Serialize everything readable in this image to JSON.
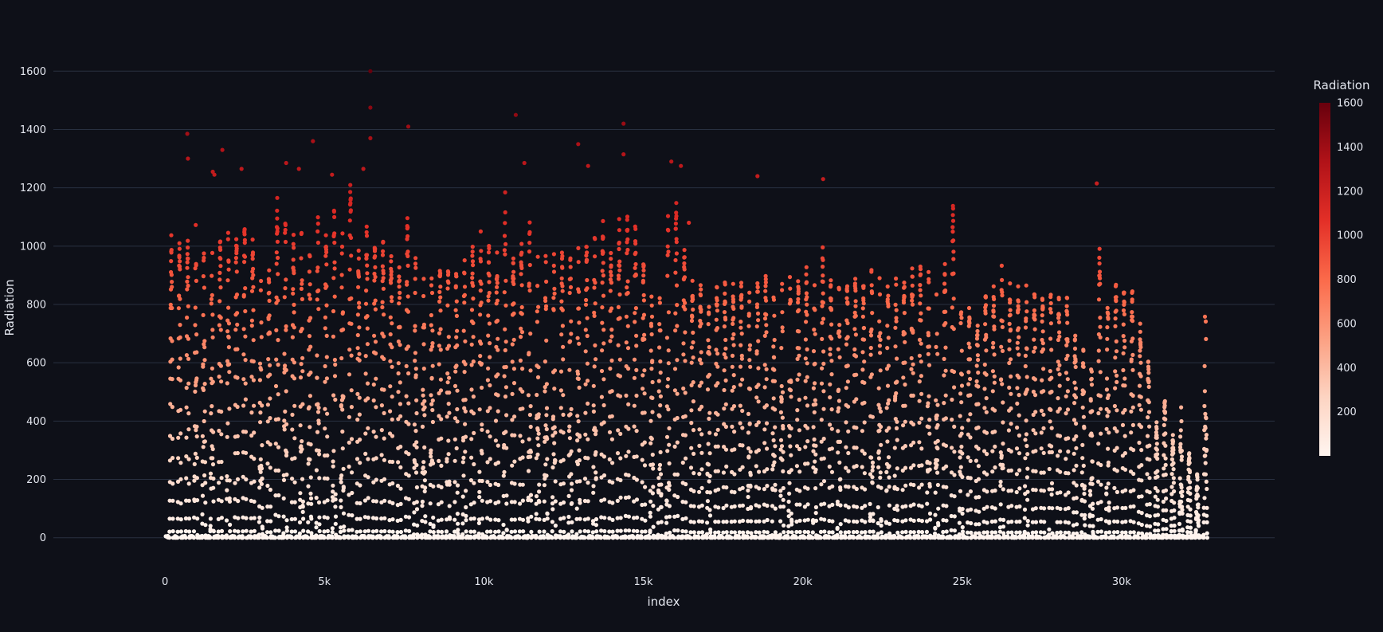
{
  "chart_data": {
    "type": "scatter",
    "xlabel": "index",
    "ylabel": "Radiation",
    "xlim": [
      -3500,
      34800
    ],
    "ylim": [
      -80,
      1680
    ],
    "x_ticks": [
      0,
      5000,
      10000,
      15000,
      20000,
      25000,
      30000
    ],
    "x_tick_labels": [
      "0",
      "5k",
      "10k",
      "15k",
      "20k",
      "25k",
      "30k"
    ],
    "y_ticks": [
      0,
      200,
      400,
      600,
      800,
      1000,
      1200,
      1400,
      1600
    ],
    "y_tick_labels": [
      "0",
      "200",
      "400",
      "600",
      "800",
      "1000",
      "1200",
      "1400",
      "1600"
    ],
    "x_range": [
      0,
      32686
    ],
    "grid": true,
    "colorbar": {
      "title": "Radiation",
      "range": [
        0,
        1600
      ],
      "ticks": [
        200,
        400,
        600,
        800,
        1000,
        1200,
        1400,
        1600
      ],
      "colorscale": [
        "#fff5f0",
        "#fdd4c2",
        "#fca082",
        "#fb6a4a",
        "#e32f27",
        "#b11218",
        "#67000d"
      ]
    },
    "daily_peaks": [
      1040,
      1030,
      1050,
      1075,
      1010,
      1060,
      1050,
      1070,
      1060,
      1090,
      1060,
      900,
      930,
      1180,
      1130,
      1050,
      1080,
      1000,
      1110,
      1060,
      1140,
      1100,
      1260,
      1000,
      1090,
      1070,
      1040,
      1000,
      950,
      1140,
      960,
      900,
      980,
      970,
      980,
      990,
      980,
      1010,
      1060,
      1020,
      980,
      1200,
      1000,
      1020,
      1100,
      1010,
      1000,
      1010,
      1020,
      1030,
      1000,
      1040,
      1060,
      1110,
      1020,
      1100,
      1130,
      1100,
      980,
      890,
      850,
      1130,
      1200,
      1030,
      890,
      880,
      850,
      880,
      890,
      880,
      890,
      870,
      910,
      920,
      880,
      880,
      920,
      910,
      930,
      920,
      1000,
      910,
      900,
      900,
      910,
      890,
      960,
      900,
      900,
      940,
      920,
      940,
      940,
      940,
      940,
      960,
      1180,
      850,
      810,
      760,
      850,
      880,
      940,
      880,
      870,
      870,
      860,
      860,
      860,
      850,
      830,
      700,
      650,
      620,
      1000,
      860,
      880,
      870,
      870,
      740,
      620,
      400,
      490,
      360,
      460,
      300,
      220,
      860
    ],
    "outliers": [
      {
        "x": 700,
        "y": 1385
      },
      {
        "x": 720,
        "y": 1300
      },
      {
        "x": 1800,
        "y": 1330
      },
      {
        "x": 6440,
        "y": 1600
      },
      {
        "x": 6440,
        "y": 1475
      },
      {
        "x": 6440,
        "y": 1370
      },
      {
        "x": 4640,
        "y": 1360
      },
      {
        "x": 7630,
        "y": 1410
      },
      {
        "x": 11000,
        "y": 1450
      },
      {
        "x": 12960,
        "y": 1350
      },
      {
        "x": 14380,
        "y": 1420
      },
      {
        "x": 14380,
        "y": 1315
      },
      {
        "x": 3800,
        "y": 1285
      },
      {
        "x": 4200,
        "y": 1265
      },
      {
        "x": 2400,
        "y": 1265
      },
      {
        "x": 6220,
        "y": 1265
      },
      {
        "x": 11270,
        "y": 1285
      },
      {
        "x": 13270,
        "y": 1275
      },
      {
        "x": 15880,
        "y": 1290
      },
      {
        "x": 16180,
        "y": 1275
      },
      {
        "x": 18580,
        "y": 1240
      },
      {
        "x": 20640,
        "y": 1230
      },
      {
        "x": 29220,
        "y": 1215
      },
      {
        "x": 1500,
        "y": 1255
      },
      {
        "x": 1550,
        "y": 1245
      },
      {
        "x": 5240,
        "y": 1245
      },
      {
        "x": 16430,
        "y": 1080
      }
    ]
  }
}
